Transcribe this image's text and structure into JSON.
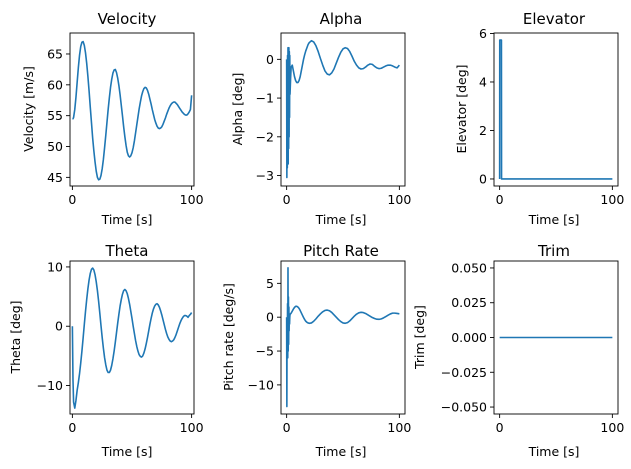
{
  "chart_data": [
    {
      "type": "line",
      "title": "Velocity",
      "xlabel": "Time [s]",
      "ylabel": "Velocity [m/s]",
      "xlim": [
        -2,
        102
      ],
      "ylim": [
        43.6,
        68.4
      ],
      "xticks": [
        0,
        100
      ],
      "xtick_labels": [
        "0",
        "100"
      ],
      "yticks": [
        45,
        50,
        55,
        60,
        65
      ],
      "ytick_labels": [
        "45",
        "50",
        "55",
        "60",
        "65"
      ],
      "series": [
        {
          "color": "#1f77b4",
          "x": [
            0,
            0.5,
            1,
            2,
            3,
            4,
            5,
            6,
            7,
            8,
            9,
            10,
            11,
            12,
            13,
            14,
            15,
            16,
            17,
            18,
            19,
            20,
            21,
            22,
            23,
            24,
            25,
            26,
            27,
            28,
            29,
            30,
            31,
            32,
            33,
            34,
            35,
            36,
            37,
            38,
            39,
            40,
            41,
            42,
            43,
            44,
            45,
            46,
            47,
            48,
            49,
            50,
            51,
            52,
            53,
            54,
            55,
            56,
            57,
            58,
            59,
            60,
            61,
            62,
            63,
            64,
            65,
            66,
            67,
            68,
            69,
            70,
            71,
            72,
            73,
            74,
            75,
            76,
            77,
            78,
            79,
            80,
            81,
            82,
            83,
            84,
            85,
            86,
            87,
            88,
            89,
            90,
            91,
            92,
            93,
            94,
            95,
            96,
            97,
            98,
            99,
            100
          ],
          "y": [
            54.5,
            54.5,
            54.7,
            56.0,
            58.0,
            60.4,
            62.8,
            64.8,
            66.2,
            66.9,
            67.0,
            66.4,
            65.2,
            63.5,
            61.4,
            59.0,
            56.4,
            53.9,
            51.4,
            49.3,
            47.5,
            46.0,
            45.0,
            44.6,
            44.7,
            45.3,
            46.4,
            47.9,
            49.8,
            51.8,
            53.9,
            56.0,
            57.9,
            59.6,
            60.9,
            61.9,
            62.4,
            62.5,
            62.0,
            61.1,
            59.9,
            58.4,
            56.7,
            55.0,
            53.2,
            51.6,
            50.2,
            49.1,
            48.5,
            48.3,
            48.5,
            49.0,
            49.8,
            50.9,
            52.2,
            53.5,
            54.8,
            56.1,
            57.2,
            58.2,
            58.9,
            59.4,
            59.6,
            59.5,
            59.1,
            58.5,
            57.7,
            56.9,
            56.0,
            55.2,
            54.4,
            53.8,
            53.3,
            53.0,
            52.9,
            53.0,
            53.2,
            53.6,
            54.1,
            54.6,
            55.2,
            55.7,
            56.2,
            56.6,
            56.9,
            57.1,
            57.2,
            57.2,
            57.0,
            56.8,
            56.5,
            56.2,
            55.9,
            55.6,
            55.4,
            55.2,
            55.1,
            55.1,
            55.3,
            55.6,
            56.0,
            58.3
          ]
        }
      ]
    },
    {
      "type": "line",
      "title": "Alpha",
      "xlabel": "Time [s]",
      "ylabel": "Alpha [deg]",
      "xlim": [
        -5,
        105
      ],
      "ylim": [
        -3.27,
        0.68
      ],
      "xticks": [
        0,
        100
      ],
      "xtick_labels": [
        "0",
        "100"
      ],
      "yticks": [
        -3,
        -2,
        -1,
        0
      ],
      "ytick_labels": [
        "−3",
        "−2",
        "−1",
        "0"
      ],
      "series": [
        {
          "color": "#1f77b4",
          "x": [
            0,
            0.2,
            0.4,
            0.6,
            0.8,
            1,
            1.2,
            1.4,
            1.6,
            1.8,
            2,
            2.2,
            2.4,
            2.6,
            2.8,
            3,
            3.5,
            4,
            5,
            6,
            7,
            8,
            9,
            10,
            11,
            12,
            13,
            14,
            15,
            16,
            17,
            18,
            19,
            20,
            22,
            24,
            26,
            28,
            30,
            32,
            34,
            36,
            38,
            40,
            42,
            44,
            46,
            48,
            50,
            52,
            54,
            56,
            58,
            60,
            62,
            64,
            66,
            68,
            70,
            72,
            74,
            76,
            78,
            80,
            82,
            84,
            86,
            88,
            90,
            92,
            94,
            96,
            98,
            100
          ],
          "y": [
            0,
            -3.05,
            -0.3,
            -2.8,
            0.1,
            -2.5,
            0.3,
            -2.7,
            0.2,
            -2.3,
            0.3,
            -2.0,
            0.2,
            -1.5,
            0.1,
            -0.9,
            -0.5,
            -0.2,
            -0.15,
            -0.3,
            -0.45,
            -0.55,
            -0.6,
            -0.6,
            -0.55,
            -0.45,
            -0.3,
            -0.15,
            0,
            0.12,
            0.22,
            0.3,
            0.38,
            0.43,
            0.48,
            0.45,
            0.35,
            0.2,
            0.02,
            -0.15,
            -0.3,
            -0.38,
            -0.4,
            -0.35,
            -0.25,
            -0.1,
            0.05,
            0.18,
            0.27,
            0.3,
            0.28,
            0.2,
            0.08,
            -0.05,
            -0.15,
            -0.22,
            -0.25,
            -0.24,
            -0.2,
            -0.15,
            -0.12,
            -0.13,
            -0.18,
            -0.22,
            -0.24,
            -0.23,
            -0.2,
            -0.17,
            -0.15,
            -0.15,
            -0.17,
            -0.2,
            -0.22,
            -0.15
          ]
        }
      ]
    },
    {
      "type": "line",
      "title": "Elevator",
      "xlabel": "Time [s]",
      "ylabel": "Elevator [deg]",
      "xlim": [
        -5,
        105
      ],
      "ylim": [
        -0.29,
        6.02
      ],
      "xticks": [
        0,
        100
      ],
      "xtick_labels": [
        "0",
        "100"
      ],
      "yticks": [
        0,
        2,
        4,
        6
      ],
      "ytick_labels": [
        "0",
        "2",
        "4",
        "6"
      ],
      "series": [
        {
          "color": "#1f77b4",
          "x": [
            0,
            0.1,
            1.6,
            1.7,
            2,
            100
          ],
          "y": [
            0,
            5.73,
            5.73,
            0,
            0,
            0
          ]
        }
      ]
    },
    {
      "type": "line",
      "title": "Theta",
      "xlabel": "Time [s]",
      "ylabel": "Theta [deg]",
      "xlim": [
        -2,
        102
      ],
      "ylim": [
        -14.8,
        11.0
      ],
      "xticks": [
        0,
        100
      ],
      "xtick_labels": [
        "0",
        "100"
      ],
      "yticks": [
        -10,
        0,
        10
      ],
      "ytick_labels": [
        "−10",
        "0",
        "10"
      ],
      "series": [
        {
          "color": "#1f77b4",
          "x": [
            0,
            0.5,
            1,
            2,
            3,
            4,
            5,
            6,
            7,
            8,
            9,
            10,
            11,
            12,
            13,
            14,
            15,
            16,
            17,
            18,
            19,
            20,
            21,
            22,
            23,
            24,
            25,
            26,
            27,
            28,
            29,
            30,
            31,
            32,
            33,
            34,
            35,
            36,
            37,
            38,
            39,
            40,
            41,
            42,
            43,
            44,
            45,
            46,
            47,
            48,
            49,
            50,
            51,
            52,
            53,
            54,
            55,
            56,
            57,
            58,
            59,
            60,
            61,
            62,
            63,
            64,
            65,
            66,
            67,
            68,
            69,
            70,
            71,
            72,
            73,
            74,
            75,
            76,
            77,
            78,
            79,
            80,
            81,
            82,
            83,
            84,
            85,
            86,
            87,
            88,
            89,
            90,
            91,
            92,
            93,
            94,
            95,
            96,
            97,
            98,
            99,
            100
          ],
          "y": [
            0,
            -9,
            -12.8,
            -13.8,
            -12.5,
            -10.8,
            -9.5,
            -8.0,
            -6.2,
            -4.2,
            -2.0,
            0.3,
            2.5,
            4.5,
            6.3,
            7.8,
            8.9,
            9.6,
            9.8,
            9.5,
            8.7,
            7.5,
            6.0,
            4.2,
            2.2,
            0.1,
            -1.9,
            -3.7,
            -5.3,
            -6.5,
            -7.4,
            -7.8,
            -7.8,
            -7.4,
            -6.6,
            -5.5,
            -4.2,
            -2.7,
            -1.1,
            0.5,
            2.0,
            3.4,
            4.5,
            5.4,
            6.0,
            6.2,
            6.0,
            5.5,
            4.7,
            3.7,
            2.5,
            1.3,
            0.0,
            -1.2,
            -2.4,
            -3.4,
            -4.2,
            -4.8,
            -5.1,
            -5.2,
            -5.0,
            -4.5,
            -3.8,
            -2.9,
            -1.9,
            -0.8,
            0.3,
            1.3,
            2.2,
            2.9,
            3.4,
            3.7,
            3.8,
            3.6,
            3.2,
            2.6,
            1.9,
            1.1,
            0.3,
            -0.5,
            -1.2,
            -1.8,
            -2.2,
            -2.5,
            -2.6,
            -2.5,
            -2.3,
            -1.9,
            -1.4,
            -0.8,
            -0.2,
            0.4,
            0.9,
            1.3,
            1.6,
            1.8,
            1.8,
            1.7,
            1.5,
            1.8,
            2.0,
            2.3
          ]
        }
      ]
    },
    {
      "type": "line",
      "title": "Pitch Rate",
      "xlabel": "Time [s]",
      "ylabel": "Pitch rate [deg/s]",
      "xlim": [
        -5,
        105
      ],
      "ylim": [
        -14.3,
        8.3
      ],
      "xticks": [
        0,
        100
      ],
      "xtick_labels": [
        "0",
        "100"
      ],
      "yticks": [
        -10,
        -5,
        0,
        5
      ],
      "ytick_labels": [
        "−10",
        "−5",
        "0",
        "5"
      ],
      "series": [
        {
          "color": "#1f77b4",
          "x": [
            0,
            0.2,
            0.4,
            0.6,
            0.8,
            1,
            1.2,
            1.4,
            1.6,
            1.8,
            2,
            2.2,
            2.4,
            2.6,
            2.8,
            3,
            3.5,
            4,
            5,
            6,
            7,
            8,
            9,
            10,
            11,
            12,
            13,
            14,
            15,
            16,
            17,
            18,
            19,
            20,
            22,
            24,
            26,
            28,
            30,
            32,
            34,
            36,
            38,
            40,
            42,
            44,
            46,
            48,
            50,
            52,
            54,
            56,
            58,
            60,
            62,
            64,
            66,
            68,
            70,
            72,
            74,
            76,
            78,
            80,
            82,
            84,
            86,
            88,
            90,
            92,
            94,
            96,
            98,
            100
          ],
          "y": [
            0,
            -13.2,
            -1,
            -6,
            2,
            -6,
            7.3,
            -5,
            3,
            -4,
            1.5,
            -2,
            0.5,
            -1,
            0,
            0.4,
            0.5,
            0.6,
            0.9,
            1.2,
            1.45,
            1.6,
            1.6,
            1.5,
            1.3,
            1.0,
            0.65,
            0.3,
            -0.05,
            -0.35,
            -0.6,
            -0.75,
            -0.85,
            -0.9,
            -0.85,
            -0.6,
            -0.25,
            0.15,
            0.5,
            0.8,
            1.0,
            1.05,
            0.95,
            0.7,
            0.35,
            0,
            -0.35,
            -0.65,
            -0.85,
            -0.9,
            -0.8,
            -0.55,
            -0.2,
            0.15,
            0.45,
            0.65,
            0.72,
            0.68,
            0.55,
            0.35,
            0.15,
            -0.05,
            -0.2,
            -0.3,
            -0.32,
            -0.25,
            -0.1,
            0.1,
            0.3,
            0.48,
            0.6,
            0.6,
            0.55,
            0.5
          ]
        }
      ]
    },
    {
      "type": "line",
      "title": "Trim",
      "xlabel": "Time [s]",
      "ylabel": "Trim [deg]",
      "xlim": [
        -5,
        105
      ],
      "ylim": [
        -0.055,
        0.055
      ],
      "xticks": [
        0,
        100
      ],
      "xtick_labels": [
        "0",
        "100"
      ],
      "yticks": [
        -0.05,
        -0.025,
        0,
        0.025,
        0.05
      ],
      "ytick_labels": [
        "−0.050",
        "−0.025",
        "0.000",
        "0.025",
        "0.050"
      ],
      "series": [
        {
          "color": "#1f77b4",
          "x": [
            0,
            100
          ],
          "y": [
            0,
            0
          ]
        }
      ]
    }
  ]
}
